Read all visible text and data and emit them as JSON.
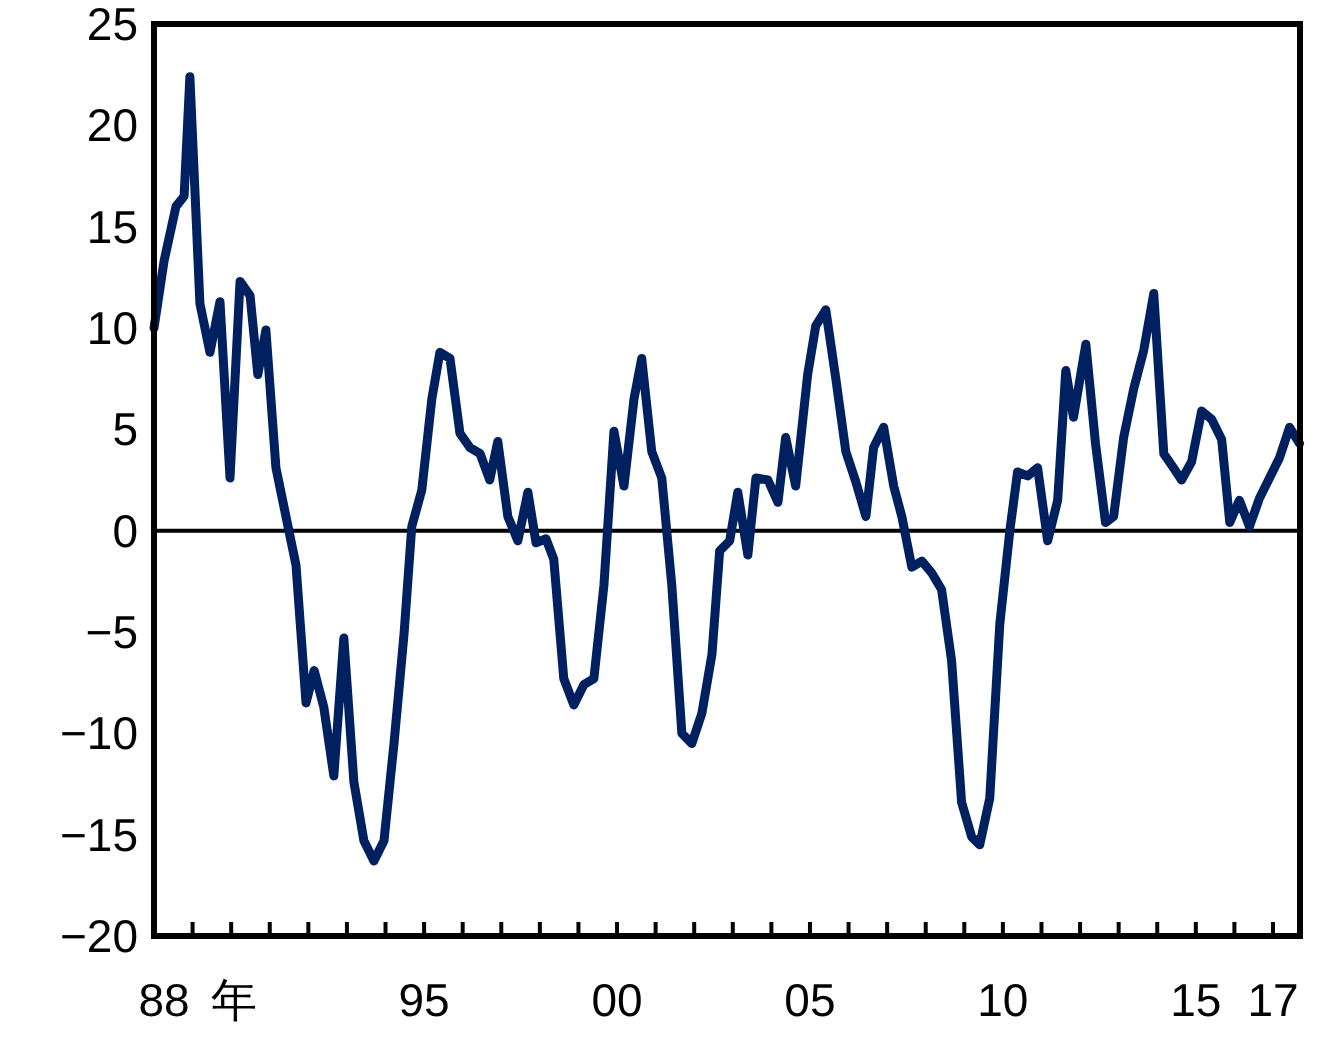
{
  "chart_data": {
    "type": "line",
    "xlim": [
      1988,
      2017.7
    ],
    "ylim": [
      -20,
      25
    ],
    "yticks": [
      -20,
      -15,
      -10,
      -5,
      0,
      5,
      10,
      15,
      20,
      25
    ],
    "xticks": [
      {
        "value": 1988,
        "label": "88"
      },
      {
        "value": 1989,
        "label": null
      },
      {
        "value": 1990,
        "label": null
      },
      {
        "value": 1991,
        "label": null
      },
      {
        "value": 1992,
        "label": null
      },
      {
        "value": 1993,
        "label": null
      },
      {
        "value": 1994,
        "label": null
      },
      {
        "value": 1995,
        "label": "95"
      },
      {
        "value": 1996,
        "label": null
      },
      {
        "value": 1997,
        "label": null
      },
      {
        "value": 1998,
        "label": null
      },
      {
        "value": 1999,
        "label": null
      },
      {
        "value": 2000,
        "label": "00"
      },
      {
        "value": 2001,
        "label": null
      },
      {
        "value": 2002,
        "label": null
      },
      {
        "value": 2003,
        "label": null
      },
      {
        "value": 2004,
        "label": null
      },
      {
        "value": 2005,
        "label": "05"
      },
      {
        "value": 2006,
        "label": null
      },
      {
        "value": 2007,
        "label": null
      },
      {
        "value": 2008,
        "label": null
      },
      {
        "value": 2009,
        "label": null
      },
      {
        "value": 2010,
        "label": "10"
      },
      {
        "value": 2011,
        "label": null
      },
      {
        "value": 2012,
        "label": null
      },
      {
        "value": 2013,
        "label": null
      },
      {
        "value": 2014,
        "label": null
      },
      {
        "value": 2015,
        "label": "15"
      },
      {
        "value": 2016,
        "label": null
      },
      {
        "value": 2017,
        "label": "17"
      }
    ],
    "xlabel": "年",
    "grid": false,
    "ref_lines": [
      {
        "axis": "y",
        "value": 0,
        "color": "#000000"
      }
    ],
    "series": [
      {
        "color": "#002060",
        "x": [
          1988.0,
          1988.26,
          1988.57,
          1988.78,
          1988.93,
          1989.19,
          1989.45,
          1989.71,
          1989.97,
          1990.23,
          1990.49,
          1990.69,
          1990.9,
          1991.16,
          1991.42,
          1991.68,
          1991.94,
          1992.15,
          1992.4,
          1992.66,
          1992.92,
          1993.18,
          1993.44,
          1993.7,
          1993.96,
          1994.22,
          1994.48,
          1994.68,
          1994.94,
          1995.2,
          1995.41,
          1995.67,
          1995.93,
          1996.19,
          1996.45,
          1996.7,
          1996.91,
          1997.17,
          1997.43,
          1997.69,
          1997.9,
          1998.16,
          1998.36,
          1998.62,
          1998.88,
          1999.14,
          1999.4,
          1999.66,
          1999.92,
          2000.18,
          2000.44,
          2000.64,
          2000.9,
          2001.16,
          2001.42,
          2001.68,
          2001.94,
          2002.2,
          2002.46,
          2002.66,
          2002.92,
          2003.13,
          2003.39,
          2003.6,
          2003.91,
          2004.17,
          2004.37,
          2004.63,
          2004.94,
          2005.15,
          2005.41,
          2005.67,
          2005.93,
          2006.19,
          2006.45,
          2006.65,
          2006.91,
          2007.17,
          2007.38,
          2007.64,
          2007.9,
          2008.16,
          2008.41,
          2008.67,
          2008.93,
          2009.19,
          2009.4,
          2009.66,
          2009.92,
          2010.18,
          2010.38,
          2010.64,
          2010.9,
          2011.16,
          2011.42,
          2011.63,
          2011.83,
          2012.15,
          2012.4,
          2012.66,
          2012.87,
          2013.13,
          2013.39,
          2013.65,
          2013.91,
          2014.17,
          2014.42,
          2014.63,
          2014.89,
          2015.15,
          2015.41,
          2015.67,
          2015.88,
          2016.13,
          2016.39,
          2016.65,
          2016.91,
          2017.17,
          2017.43,
          2017.69
        ],
        "values": [
          10,
          13.3,
          16,
          16.5,
          22.4,
          11.2,
          8.8,
          11.3,
          2.6,
          12.3,
          11.6,
          7.7,
          9.9,
          3.1,
          0.7,
          -1.7,
          -8.5,
          -6.9,
          -8.7,
          -12.1,
          -5.3,
          -12.4,
          -15.3,
          -16.3,
          -15.3,
          -10.5,
          -5.1,
          0.2,
          2,
          6.5,
          8.8,
          8.5,
          4.8,
          4.1,
          3.8,
          2.5,
          4.4,
          0.7,
          -0.5,
          1.9,
          -0.6,
          -0.4,
          -1.4,
          -7.3,
          -8.6,
          -7.6,
          -7.3,
          -2.7,
          4.9,
          2.2,
          6.5,
          8.5,
          3.9,
          2.6,
          -2.7,
          -10,
          -10.5,
          -9,
          -6.1,
          -1,
          -0.5,
          1.9,
          -1.2,
          2.6,
          2.5,
          1.4,
          4.6,
          2.2,
          7.7,
          10.1,
          10.9,
          7.5,
          3.9,
          2.4,
          0.7,
          4.1,
          5.1,
          2.2,
          0.7,
          -1.8,
          -1.5,
          -2.1,
          -2.9,
          -6.4,
          -13.4,
          -15.1,
          -15.5,
          -13.2,
          -4.6,
          0,
          2.9,
          2.7,
          3.1,
          -0.5,
          1.5,
          7.9,
          5.6,
          9.2,
          4.3,
          0.4,
          0.7,
          4.6,
          7,
          8.9,
          11.7,
          3.8,
          3.1,
          2.5,
          3.4,
          5.9,
          5.5,
          4.5,
          0.4,
          1.5,
          0.2,
          1.6,
          2.6,
          3.6,
          5.1,
          4.3
        ]
      }
    ]
  }
}
